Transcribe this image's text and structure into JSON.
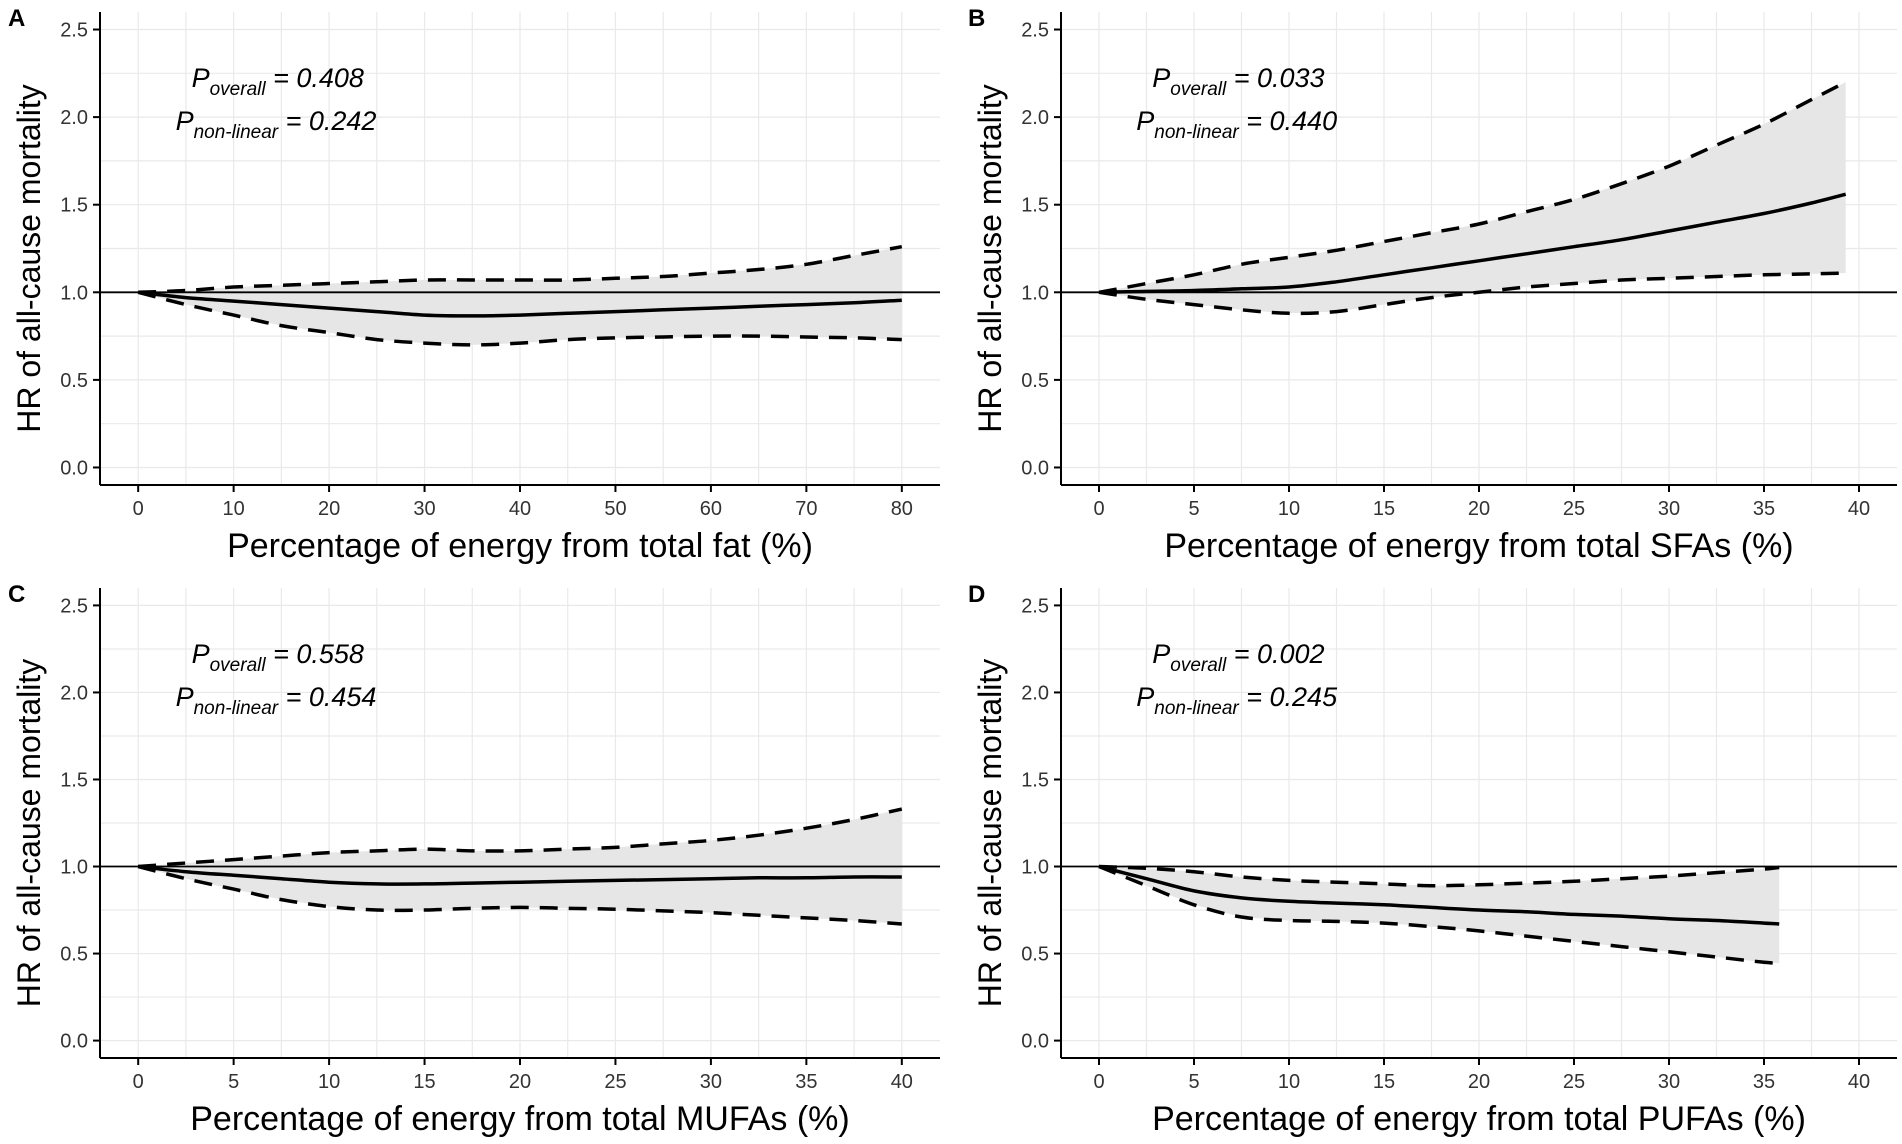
{
  "chart_data": [
    {
      "panel": "A",
      "type": "line",
      "xlabel": "Percentage of energy from total fat (%)",
      "ylabel": "HR of all-cause mortality",
      "xlim": [
        -4,
        84
      ],
      "ylim": [
        -0.1,
        2.6
      ],
      "xticks": [
        0,
        10,
        20,
        30,
        40,
        50,
        60,
        70,
        80
      ],
      "yticks": [
        0.0,
        0.5,
        1.0,
        1.5,
        2.0,
        2.5
      ],
      "ytick_labels": [
        "0.0",
        "0.5",
        "1.0",
        "1.5",
        "2.0",
        "2.5"
      ],
      "reference_line": 1.0,
      "annotation": {
        "p_overall_label": "overall",
        "p_overall": "= 0.408",
        "p_nonlinear_label": "non-linear",
        "p_nonlinear": "= 0.242"
      },
      "x": [
        0,
        5,
        10,
        15,
        20,
        25,
        30,
        35,
        40,
        45,
        50,
        55,
        60,
        65,
        70,
        75,
        80
      ],
      "hr": [
        1.0,
        0.97,
        0.95,
        0.93,
        0.91,
        0.89,
        0.87,
        0.865,
        0.87,
        0.88,
        0.89,
        0.9,
        0.91,
        0.92,
        0.93,
        0.94,
        0.955
      ],
      "lower": [
        1.0,
        0.93,
        0.87,
        0.81,
        0.77,
        0.73,
        0.71,
        0.7,
        0.71,
        0.73,
        0.74,
        0.745,
        0.75,
        0.75,
        0.745,
        0.74,
        0.73
      ],
      "upper": [
        1.0,
        1.01,
        1.03,
        1.04,
        1.05,
        1.06,
        1.07,
        1.07,
        1.07,
        1.07,
        1.08,
        1.09,
        1.11,
        1.13,
        1.16,
        1.21,
        1.26
      ]
    },
    {
      "panel": "B",
      "type": "line",
      "xlabel": "Percentage of energy from total SFAs (%)",
      "ylabel": "HR of all-cause mortality",
      "xlim": [
        -2,
        42
      ],
      "ylim": [
        -0.1,
        2.6
      ],
      "xticks": [
        0,
        5,
        10,
        15,
        20,
        25,
        30,
        35,
        40
      ],
      "yticks": [
        0.0,
        0.5,
        1.0,
        1.5,
        2.0,
        2.5
      ],
      "ytick_labels": [
        "0.0",
        "0.5",
        "1.0",
        "1.5",
        "2.0",
        "2.5"
      ],
      "reference_line": 1.0,
      "annotation": {
        "p_overall_label": "overall",
        "p_overall": "= 0.033",
        "p_nonlinear_label": "non-linear",
        "p_nonlinear": "= 0.440"
      },
      "x": [
        0,
        2.5,
        5,
        7.5,
        10,
        12.5,
        15,
        17.5,
        20,
        22.5,
        25,
        27.5,
        30,
        32.5,
        35,
        37.5,
        39.3
      ],
      "hr": [
        1.0,
        1.005,
        1.01,
        1.02,
        1.03,
        1.06,
        1.1,
        1.14,
        1.18,
        1.22,
        1.26,
        1.3,
        1.35,
        1.4,
        1.45,
        1.51,
        1.56
      ],
      "lower": [
        1.0,
        0.96,
        0.93,
        0.9,
        0.88,
        0.89,
        0.93,
        0.97,
        1.0,
        1.03,
        1.05,
        1.07,
        1.08,
        1.09,
        1.1,
        1.105,
        1.11
      ],
      "upper": [
        1.0,
        1.05,
        1.1,
        1.16,
        1.2,
        1.24,
        1.29,
        1.34,
        1.39,
        1.46,
        1.53,
        1.62,
        1.72,
        1.84,
        1.96,
        2.1,
        2.2
      ]
    },
    {
      "panel": "C",
      "type": "line",
      "xlabel": "Percentage of energy from total MUFAs (%)",
      "ylabel": "HR of all-cause mortality",
      "xlim": [
        -2,
        42
      ],
      "ylim": [
        -0.1,
        2.6
      ],
      "xticks": [
        0,
        5,
        10,
        15,
        20,
        25,
        30,
        35,
        40
      ],
      "yticks": [
        0.0,
        0.5,
        1.0,
        1.5,
        2.0,
        2.5
      ],
      "ytick_labels": [
        "0.0",
        "0.5",
        "1.0",
        "1.5",
        "2.0",
        "2.5"
      ],
      "reference_line": 1.0,
      "annotation": {
        "p_overall_label": "overall",
        "p_overall": "= 0.558",
        "p_nonlinear_label": "non-linear",
        "p_nonlinear": "= 0.454"
      },
      "x": [
        0,
        2.5,
        5,
        7.5,
        10,
        12.5,
        15,
        17.5,
        20,
        22.5,
        25,
        27.5,
        30,
        32.5,
        35,
        37.5,
        40
      ],
      "hr": [
        1.0,
        0.97,
        0.95,
        0.93,
        0.91,
        0.9,
        0.9,
        0.905,
        0.91,
        0.915,
        0.92,
        0.925,
        0.93,
        0.935,
        0.935,
        0.94,
        0.94
      ],
      "lower": [
        1.0,
        0.93,
        0.87,
        0.81,
        0.77,
        0.75,
        0.75,
        0.76,
        0.765,
        0.76,
        0.755,
        0.745,
        0.735,
        0.72,
        0.705,
        0.69,
        0.67
      ],
      "upper": [
        1.0,
        1.02,
        1.04,
        1.06,
        1.08,
        1.09,
        1.1,
        1.09,
        1.09,
        1.1,
        1.11,
        1.13,
        1.15,
        1.18,
        1.22,
        1.27,
        1.33
      ]
    },
    {
      "panel": "D",
      "type": "line",
      "xlabel": "Percentage of energy from total PUFAs (%)",
      "ylabel": "HR of all-cause mortality",
      "xlim": [
        -2,
        42
      ],
      "ylim": [
        -0.1,
        2.6
      ],
      "xticks": [
        0,
        5,
        10,
        15,
        20,
        25,
        30,
        35,
        40
      ],
      "yticks": [
        0.0,
        0.5,
        1.0,
        1.5,
        2.0,
        2.5
      ],
      "ytick_labels": [
        "0.0",
        "0.5",
        "1.0",
        "1.5",
        "2.0",
        "2.5"
      ],
      "reference_line": 1.0,
      "annotation": {
        "p_overall_label": "overall",
        "p_overall": "= 0.002",
        "p_nonlinear_label": "non-linear",
        "p_nonlinear": "= 0.245"
      },
      "x": [
        0,
        2.5,
        5,
        7.5,
        10,
        12.5,
        15,
        17.5,
        20,
        22.5,
        25,
        27.5,
        30,
        32.5,
        35,
        35.8
      ],
      "hr": [
        1.0,
        0.93,
        0.86,
        0.82,
        0.8,
        0.79,
        0.78,
        0.765,
        0.75,
        0.74,
        0.725,
        0.715,
        0.7,
        0.69,
        0.675,
        0.67
      ],
      "lower": [
        1.0,
        0.89,
        0.78,
        0.71,
        0.69,
        0.685,
        0.675,
        0.655,
        0.63,
        0.6,
        0.57,
        0.54,
        0.51,
        0.48,
        0.45,
        0.445
      ],
      "upper": [
        1.0,
        0.99,
        0.97,
        0.94,
        0.92,
        0.91,
        0.9,
        0.89,
        0.895,
        0.905,
        0.915,
        0.93,
        0.945,
        0.965,
        0.985,
        0.995
      ]
    }
  ]
}
